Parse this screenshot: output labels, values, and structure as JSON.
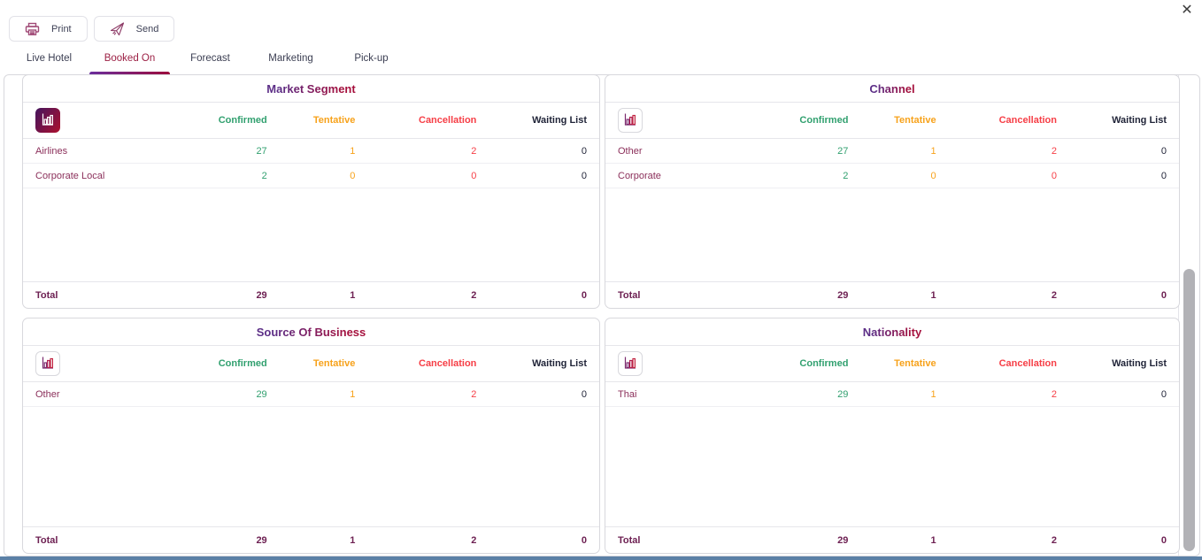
{
  "window": {
    "close_icon": "✕"
  },
  "toolbar": {
    "print": {
      "label": "Print",
      "icon": "printer-icon"
    },
    "send": {
      "label": "Send",
      "icon": "paper-plane-icon"
    }
  },
  "tabs": [
    {
      "label": "Live Hotel",
      "active": false
    },
    {
      "label": "Booked On",
      "active": true
    },
    {
      "label": "Forecast",
      "active": false
    },
    {
      "label": "Marketing",
      "active": false
    },
    {
      "label": "Pick-up",
      "active": false
    }
  ],
  "table_columns": [
    {
      "label": "Confirmed",
      "color": "#31a06f"
    },
    {
      "label": "Tentative",
      "color": "#f7a21b"
    },
    {
      "label": "Cancellation",
      "color": "#f63e46"
    },
    {
      "label": "Waiting List",
      "color": "#1f2337"
    }
  ],
  "panels": [
    {
      "title": "Market Segment",
      "chart_icon": "bar-chart-icon",
      "chart_icon_style": "filled",
      "rows": [
        {
          "label": "Airlines",
          "values": [
            "27",
            "1",
            "2",
            "0"
          ]
        },
        {
          "label": "Corporate Local",
          "values": [
            "2",
            "0",
            "0",
            "0"
          ]
        }
      ],
      "total": {
        "label": "Total",
        "values": [
          "29",
          "1",
          "2",
          "0"
        ]
      }
    },
    {
      "title": "Channel",
      "chart_icon": "bar-chart-icon",
      "chart_icon_style": "outline",
      "rows": [
        {
          "label": "Other",
          "values": [
            "27",
            "1",
            "2",
            "0"
          ]
        },
        {
          "label": "Corporate",
          "values": [
            "2",
            "0",
            "0",
            "0"
          ]
        }
      ],
      "total": {
        "label": "Total",
        "values": [
          "29",
          "1",
          "2",
          "0"
        ]
      }
    },
    {
      "title": "Source Of Business",
      "chart_icon": "bar-chart-icon",
      "chart_icon_style": "outline",
      "rows": [
        {
          "label": "Other",
          "values": [
            "29",
            "1",
            "2",
            "0"
          ]
        }
      ],
      "total": {
        "label": "Total",
        "values": [
          "29",
          "1",
          "2",
          "0"
        ]
      }
    },
    {
      "title": "Nationality",
      "chart_icon": "bar-chart-icon",
      "chart_icon_style": "outline",
      "rows": [
        {
          "label": "Thai",
          "values": [
            "29",
            "1",
            "2",
            "0"
          ]
        }
      ],
      "total": {
        "label": "Total",
        "values": [
          "29",
          "1",
          "2",
          "0"
        ]
      }
    }
  ],
  "scrollbar": {
    "visible": true
  },
  "colors": {
    "confirmed": "#31a06f",
    "tentative": "#f7a21b",
    "cancellation": "#f63e46",
    "waiting": "#23263a",
    "row_label": "#8b2f5a",
    "total_text": "#6e2153",
    "accent_gradient_start": "#5b2d86",
    "accent_gradient_end": "#a50f3c"
  }
}
